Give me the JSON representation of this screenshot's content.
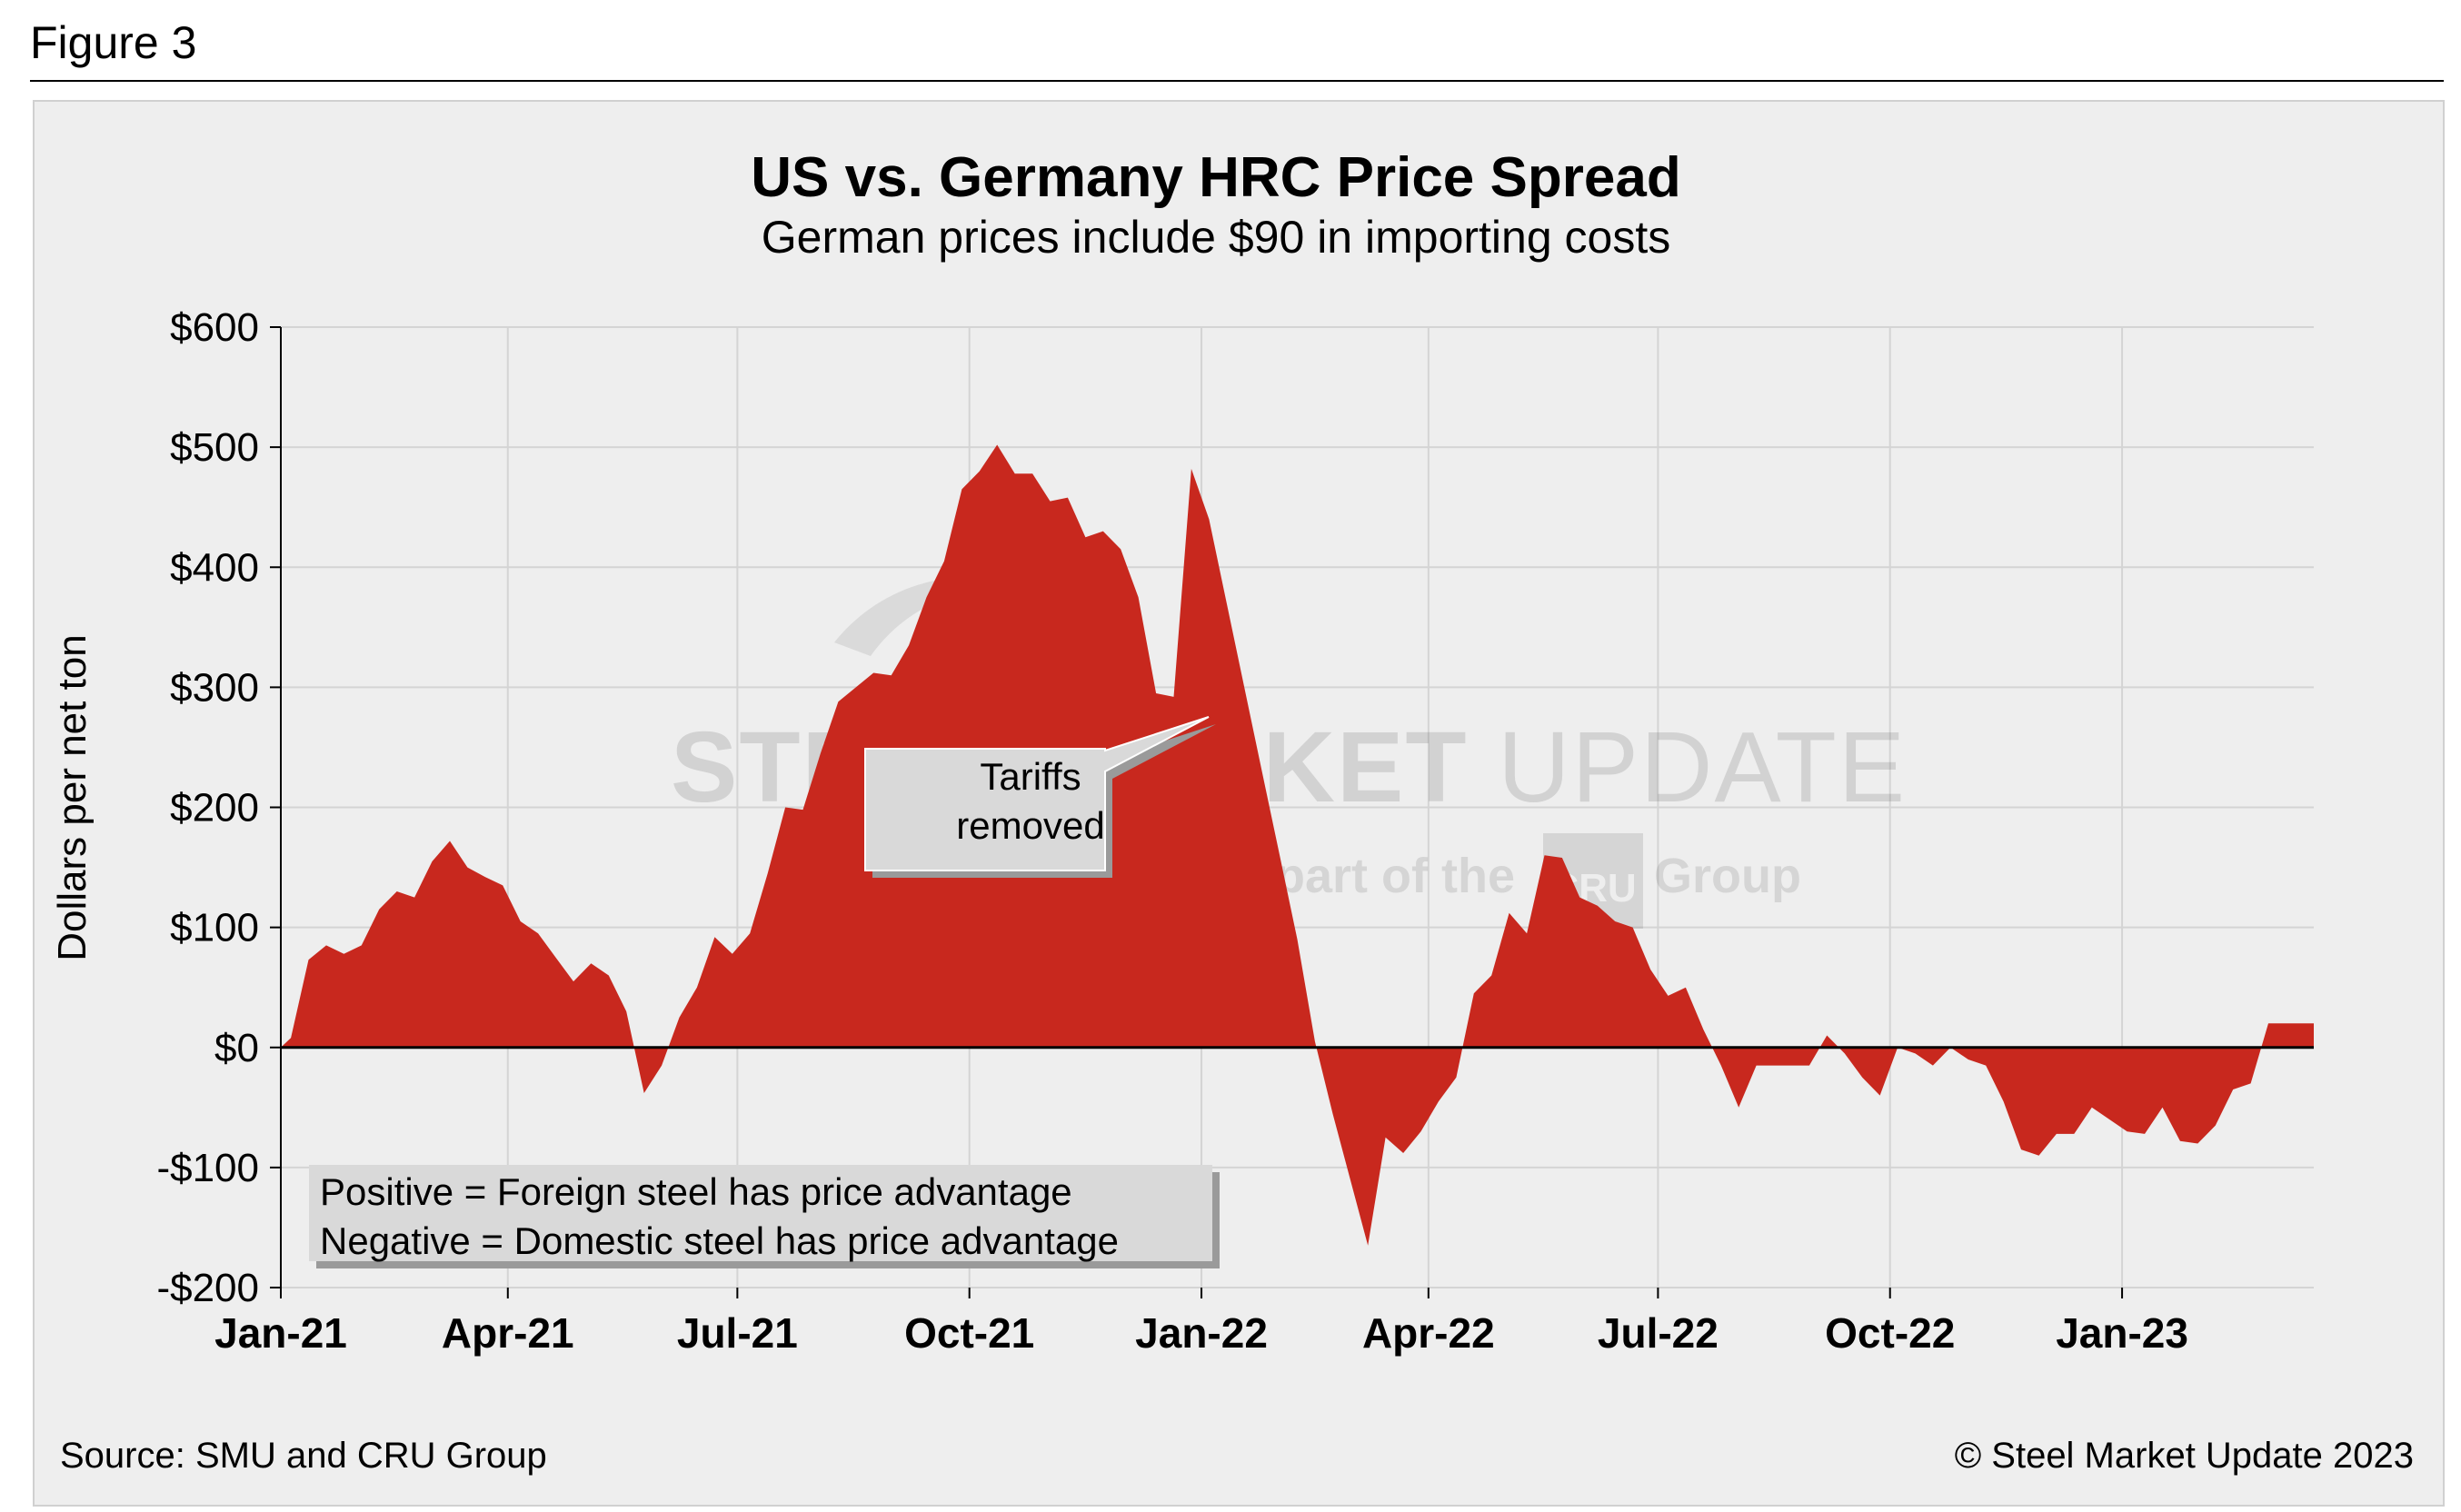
{
  "figure_label": "Figure 3",
  "source": "Source: SMU and CRU Group",
  "copyright": "© Steel Market Update 2023",
  "colors": {
    "area": "#c8281e",
    "grid": "#d4d4d4",
    "panel": "#eeeeee",
    "callout": "#d9d9d9"
  },
  "watermark": {
    "line1a": "STEEL MARKET",
    "line1b": "UPDATE",
    "line2a": "part of the",
    "logo": "CRU",
    "line2b": "Group"
  },
  "chart_data": {
    "type": "area",
    "title": "US vs. Germany HRC Price Spread",
    "subtitle": "German prices include $90 in importing costs",
    "ylabel": "Dollars per net ton",
    "xlabel": "",
    "ylim": [
      -200,
      600
    ],
    "yticks": [
      -200,
      -100,
      0,
      100,
      200,
      300,
      400,
      500,
      600
    ],
    "ytick_labels": [
      "-$200",
      "-$100",
      "$0",
      "$100",
      "$200",
      "$300",
      "$400",
      "$500",
      "$600"
    ],
    "xlim": [
      "2021-01-01",
      "2023-03-18"
    ],
    "xticks": [
      "2021-01-01",
      "2021-04-01",
      "2021-07-01",
      "2021-10-01",
      "2022-01-01",
      "2022-04-01",
      "2022-07-01",
      "2022-10-01",
      "2023-01-01"
    ],
    "xtick_labels": [
      "Jan-21",
      "Apr-21",
      "Jul-21",
      "Oct-21",
      "Jan-22",
      "Apr-22",
      "Jul-22",
      "Oct-22",
      "Jan-23"
    ],
    "grid": true,
    "annotation": {
      "text_line1": "Tariffs",
      "text_line2": "removed",
      "x": "2021-12-20",
      "y": 270
    },
    "legend_note": {
      "line1": "Positive = Foreign steel has price advantage",
      "line2": "Negative = Domestic steel has price advantage"
    },
    "series": [
      {
        "x": [
          "2021-01-01",
          "2021-01-05",
          "2021-01-12",
          "2021-01-19",
          "2021-01-26",
          "2021-02-02",
          "2021-02-09",
          "2021-02-16",
          "2021-02-23",
          "2021-03-02",
          "2021-03-09",
          "2021-03-16",
          "2021-03-23",
          "2021-03-30",
          "2021-04-06",
          "2021-04-13",
          "2021-04-20",
          "2021-04-27",
          "2021-05-04",
          "2021-05-11",
          "2021-05-18",
          "2021-05-25",
          "2021-06-01",
          "2021-06-08",
          "2021-06-15",
          "2021-06-22",
          "2021-06-29",
          "2021-07-06",
          "2021-07-13",
          "2021-07-20",
          "2021-07-27",
          "2021-08-03",
          "2021-08-10",
          "2021-08-17",
          "2021-08-24",
          "2021-08-31",
          "2021-09-07",
          "2021-09-14",
          "2021-09-21",
          "2021-09-28",
          "2021-10-05",
          "2021-10-12",
          "2021-10-19",
          "2021-10-26",
          "2021-11-02",
          "2021-11-09",
          "2021-11-16",
          "2021-11-23",
          "2021-11-30",
          "2021-12-07",
          "2021-12-14",
          "2021-12-21",
          "2021-12-28",
          "2022-01-04",
          "2022-01-11",
          "2022-01-18",
          "2022-01-25",
          "2022-02-01",
          "2022-02-08",
          "2022-02-15",
          "2022-02-22",
          "2022-03-01",
          "2022-03-08",
          "2022-03-15",
          "2022-03-22",
          "2022-03-29",
          "2022-04-05",
          "2022-04-12",
          "2022-04-19",
          "2022-04-26",
          "2022-05-03",
          "2022-05-10",
          "2022-05-17",
          "2022-05-24",
          "2022-05-31",
          "2022-06-07",
          "2022-06-14",
          "2022-06-21",
          "2022-06-28",
          "2022-07-05",
          "2022-07-12",
          "2022-07-19",
          "2022-07-26",
          "2022-08-02",
          "2022-08-09",
          "2022-08-16",
          "2022-08-23",
          "2022-08-30",
          "2022-09-06",
          "2022-09-13",
          "2022-09-20",
          "2022-09-27",
          "2022-10-04",
          "2022-10-11",
          "2022-10-18",
          "2022-10-25",
          "2022-11-01",
          "2022-11-08",
          "2022-11-15",
          "2022-11-22",
          "2022-11-29",
          "2022-12-06",
          "2022-12-13",
          "2022-12-20",
          "2022-12-27",
          "2023-01-03",
          "2023-01-10",
          "2023-01-17",
          "2023-01-24",
          "2023-01-31",
          "2023-02-07",
          "2023-02-14",
          "2023-02-21",
          "2023-02-28",
          "2023-03-07",
          "2023-03-14",
          "2023-03-18"
        ],
        "y": [
          0,
          8,
          73,
          85,
          78,
          85,
          115,
          130,
          125,
          155,
          172,
          150,
          142,
          135,
          105,
          95,
          75,
          55,
          70,
          60,
          30,
          -38,
          -15,
          25,
          50,
          92,
          78,
          95,
          145,
          200,
          198,
          245,
          288,
          300,
          312,
          310,
          335,
          375,
          405,
          465,
          480,
          502,
          478,
          478,
          455,
          458,
          425,
          430,
          415,
          375,
          295,
          292,
          482,
          440,
          370,
          300,
          230,
          160,
          90,
          5,
          -55,
          -110,
          -165,
          -75,
          -88,
          -70,
          -45,
          -25,
          45,
          60,
          112,
          95,
          160,
          158,
          125,
          118,
          105,
          100,
          65,
          43,
          50,
          15,
          -15,
          -50,
          -15,
          -15,
          -15,
          -15,
          10,
          -5,
          -25,
          -40,
          0,
          -5,
          -15,
          0,
          -10,
          -15,
          -45,
          -85,
          -90,
          -72,
          -72,
          -50,
          -60,
          -70,
          -72,
          -50,
          -78,
          -80,
          -65,
          -35,
          -30,
          20,
          20,
          20,
          20
        ]
      }
    ]
  }
}
